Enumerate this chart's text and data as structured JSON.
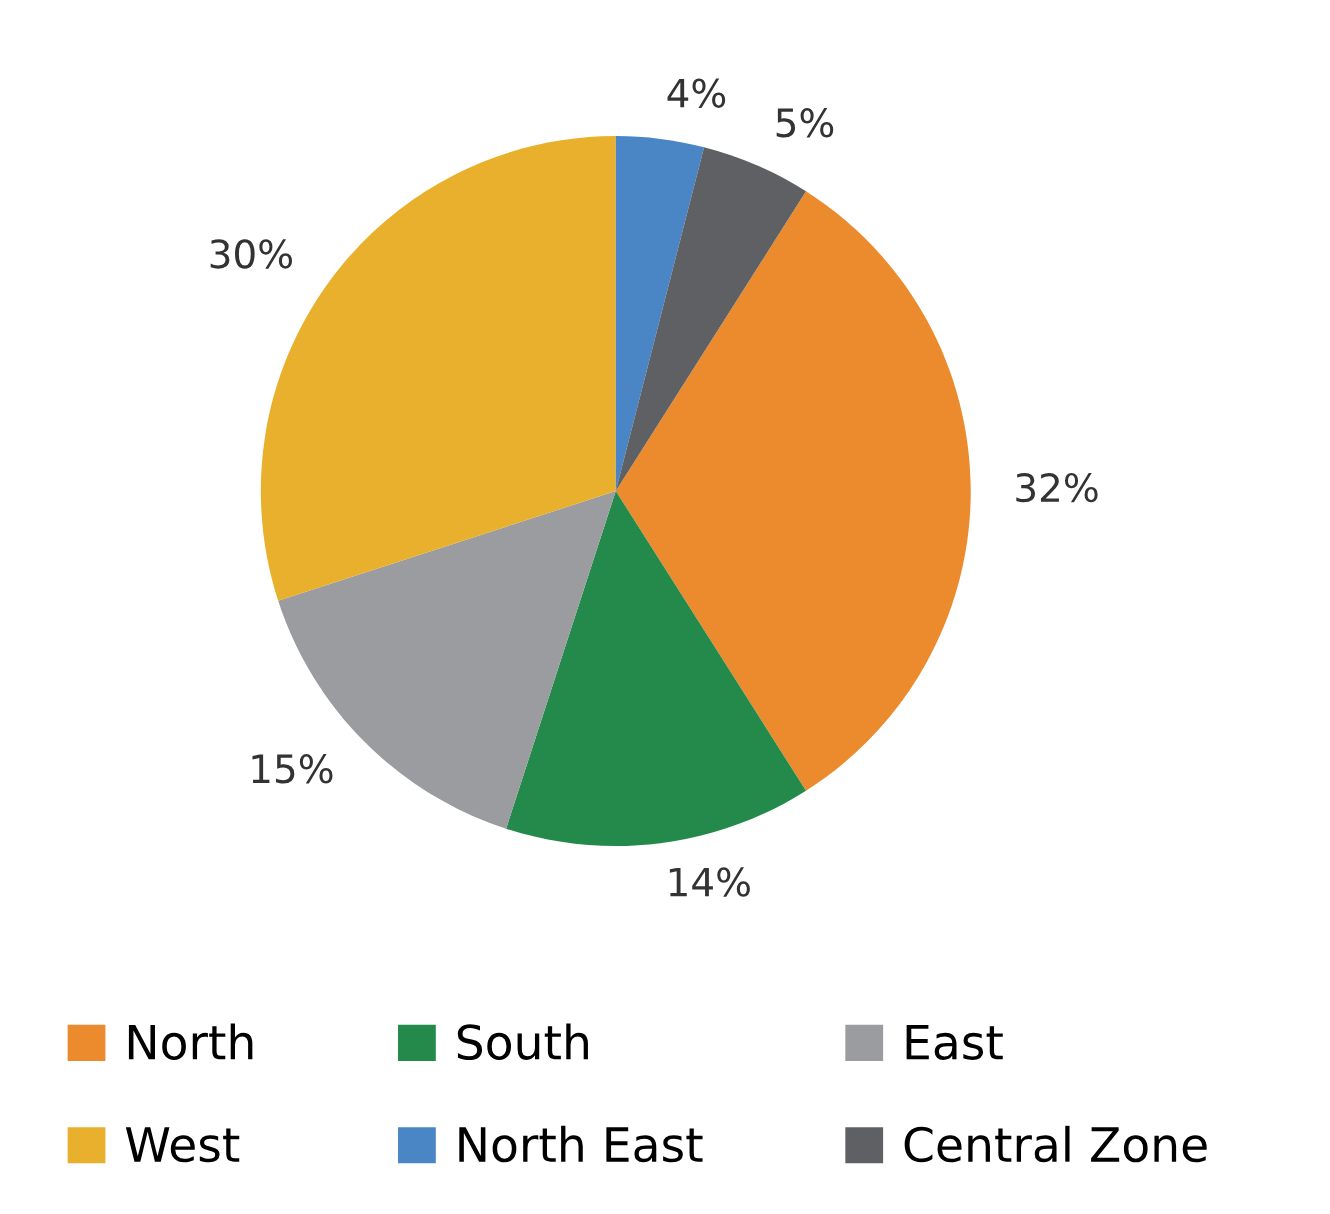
{
  "chart_data": {
    "type": "pie",
    "categories": [
      "North",
      "South",
      "East",
      "West",
      "North East",
      "Central Zone"
    ],
    "values": [
      32,
      14,
      15,
      30,
      4,
      5
    ],
    "colors": [
      "#ec8b2e",
      "#238a4c",
      "#9b9c9f",
      "#e8b02c",
      "#4a86c5",
      "#5e6064"
    ],
    "value_labels": [
      "32%",
      "14%",
      "15%",
      "30%",
      "4%",
      "5%"
    ],
    "legend": "bottom"
  }
}
